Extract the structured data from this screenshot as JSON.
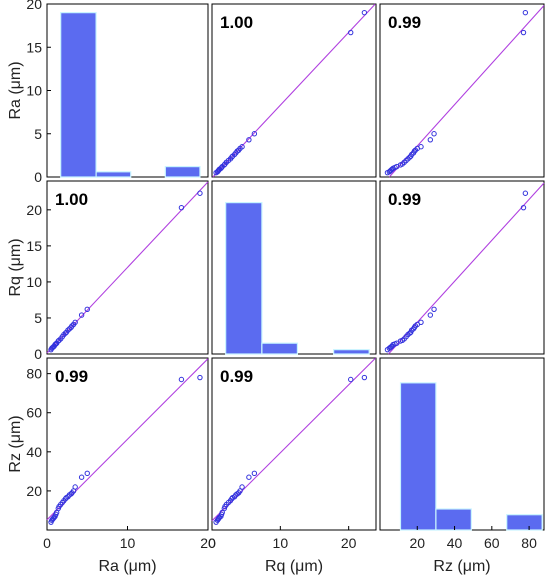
{
  "chart_data": {
    "type": "scatter-matrix",
    "variables": [
      "Ra",
      "Rq",
      "Rz"
    ],
    "axis_labels": [
      "Ra (μm)",
      "Rq (μm)",
      "Rz (μm)"
    ],
    "axis_ranges": {
      "Ra": [
        0,
        20
      ],
      "Rq": [
        0,
        24
      ],
      "Rz": [
        0,
        88
      ]
    },
    "ticks": {
      "Ra": [
        "0",
        "10",
        "20"
      ],
      "Rq": [
        "0",
        "10",
        "20"
      ],
      "Rz": [
        "20",
        "40",
        "60",
        "80"
      ]
    },
    "y_ticks": {
      "Ra": [
        "0",
        "5",
        "10",
        "15",
        "20"
      ],
      "Rq": [
        "0",
        "5",
        "10",
        "15",
        "20"
      ],
      "Rz": [
        "20",
        "40",
        "60",
        "80"
      ]
    },
    "correlations": {
      "Ra-Rq": "1.00",
      "Ra-Rz": "0.99",
      "Rq-Rz": "0.99"
    },
    "histograms": {
      "Ra": {
        "bin_edges": [
          1.7,
          6.1,
          10.4,
          14.7,
          19.0
        ],
        "counts": [
          19,
          0.6,
          0,
          1.2
        ],
        "ylim": [
          0,
          20
        ]
      },
      "Rq": {
        "bin_edges": [
          2.0,
          7.3,
          12.5,
          17.8,
          23.0
        ],
        "counts": [
          21,
          1.5,
          0,
          0.6
        ],
        "ylim": [
          0,
          24
        ]
      },
      "Rz": {
        "bin_edges": [
          11,
          30,
          49,
          68,
          87
        ],
        "counts": [
          77,
          11,
          0,
          8
        ],
        "ylim": [
          0,
          90
        ]
      }
    },
    "points": {
      "Ra": [
        0.5,
        0.6,
        0.7,
        0.8,
        0.9,
        1.0,
        1.1,
        1.2,
        1.4,
        1.5,
        1.7,
        1.9,
        2.1,
        2.3,
        2.4,
        2.6,
        2.8,
        3.0,
        3.1,
        3.3,
        3.5,
        4.3,
        5.0,
        16.7,
        19.0
      ],
      "Rq": [
        0.6,
        0.8,
        0.9,
        1.0,
        1.1,
        1.3,
        1.4,
        1.5,
        1.8,
        1.9,
        2.1,
        2.4,
        2.7,
        2.9,
        3.0,
        3.3,
        3.5,
        3.7,
        3.9,
        4.1,
        4.4,
        5.4,
        6.2,
        20.3,
        22.3
      ],
      "Rz": [
        4,
        5,
        5.5,
        6,
        6.5,
        7,
        8,
        9,
        11,
        12,
        13,
        14,
        15,
        16,
        16.5,
        17,
        18,
        18.5,
        19,
        20,
        22,
        27,
        29,
        77,
        78
      ]
    },
    "grid": false,
    "series_color": "#3333dd",
    "fit_line_color": "#b040e0",
    "bar_color": "#5b6bf0"
  }
}
